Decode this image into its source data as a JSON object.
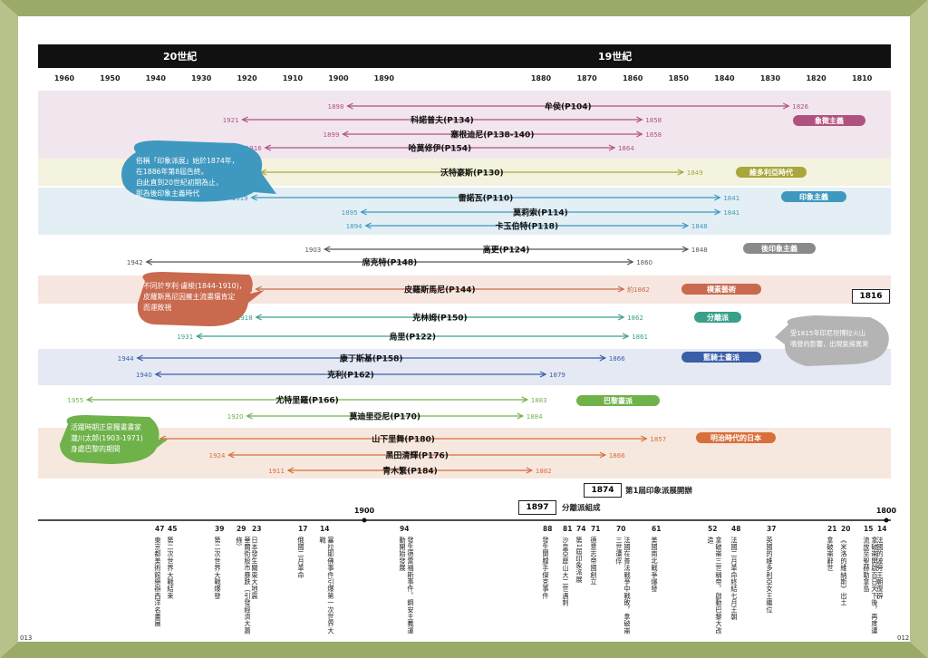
{
  "header": {
    "century_20": "20世紀",
    "century_19": "19世紀"
  },
  "years": [
    "1960",
    "1950",
    "1940",
    "1930",
    "1920",
    "1910",
    "1900",
    "1890",
    "1880",
    "1870",
    "1860",
    "1850",
    "1840",
    "1830",
    "1820",
    "1810"
  ],
  "movements": [
    {
      "name": "象徵主義",
      "color": "#b0527f"
    },
    {
      "name": "維多利亞時代",
      "color": "#a9a63b"
    },
    {
      "name": "印象主義",
      "color": "#3f98bf"
    },
    {
      "name": "後印象主義",
      "color": "#8a8a8a"
    },
    {
      "name": "樸素藝術",
      "color": "#c9694e"
    },
    {
      "name": "分離派",
      "color": "#3aa08a"
    },
    {
      "name": "藍騎士畫派",
      "color": "#3b5ea8"
    },
    {
      "name": "巴黎畫派",
      "color": "#6fb24a"
    },
    {
      "name": "明治時代的日本",
      "color": "#d86f3a"
    }
  ],
  "artists": [
    {
      "name": "牟侯(P104)",
      "death": "1898",
      "birth": "1826",
      "d": 1898,
      "b": 1826,
      "color": "#b0527f"
    },
    {
      "name": "科諾普夫(P134)",
      "death": "1921",
      "birth": "1858",
      "d": 1921,
      "b": 1858,
      "color": "#b0527f"
    },
    {
      "name": "塞根迪尼(P138-140)",
      "death": "1899",
      "birth": "1858",
      "d": 1899,
      "b": 1858,
      "color": "#b0527f"
    },
    {
      "name": "哈莫修伊(P154)",
      "death": "1916",
      "birth": "1864",
      "d": 1916,
      "b": 1864,
      "color": "#b0527f"
    },
    {
      "name": "沃特豪斯(P130)",
      "death": "1917",
      "birth": "1849",
      "d": 1917,
      "b": 1849,
      "color": "#a9a63b"
    },
    {
      "name": "雷諾瓦(P110)",
      "death": "1919",
      "birth": "1841",
      "d": 1919,
      "b": 1841,
      "color": "#3f98bf"
    },
    {
      "name": "莫莉索(P114)",
      "death": "1895",
      "birth": "1841",
      "d": 1895,
      "b": 1841,
      "color": "#3f98bf"
    },
    {
      "name": "卡玉伯特(P118)",
      "death": "1894",
      "birth": "1848",
      "d": 1894,
      "b": 1848,
      "color": "#3f98bf"
    },
    {
      "name": "高更(P124)",
      "death": "1903",
      "birth": "1848",
      "d": 1903,
      "b": 1848,
      "color": "#555555"
    },
    {
      "name": "席克特(P148)",
      "death": "1942",
      "birth": "1860",
      "d": 1942,
      "b": 1860,
      "color": "#555555"
    },
    {
      "name": "皮羅斯馬尼(P144)",
      "death": "1918",
      "birth": "約1862",
      "d": 1918,
      "b": 1862,
      "color": "#c9694e"
    },
    {
      "name": "克林姆(P150)",
      "death": "1918",
      "birth": "1862",
      "d": 1918,
      "b": 1862,
      "color": "#3aa08a"
    },
    {
      "name": "烏里(P122)",
      "death": "1931",
      "birth": "1861",
      "d": 1931,
      "b": 1861,
      "color": "#3aa08a"
    },
    {
      "name": "康丁斯基(P158)",
      "death": "1944",
      "birth": "1866",
      "d": 1944,
      "b": 1866,
      "color": "#3b5ea8"
    },
    {
      "name": "克利(P162)",
      "death": "1940",
      "birth": "1879",
      "d": 1940,
      "b": 1879,
      "color": "#3b5ea8"
    },
    {
      "name": "尤特里羅(P166)",
      "death": "1955",
      "birth": "1883",
      "d": 1955,
      "b": 1883,
      "color": "#6fb24a"
    },
    {
      "name": "莫迪里亞尼(P170)",
      "death": "1920",
      "birth": "1884",
      "d": 1920,
      "b": 1884,
      "color": "#6fb24a"
    },
    {
      "name": "山下里舞(P180)",
      "death": "1939",
      "birth": "1857",
      "d": 1939,
      "b": 1857,
      "color": "#d86f3a"
    },
    {
      "name": "黑田清輝(P176)",
      "death": "1924",
      "birth": "1866",
      "d": 1924,
      "b": 1866,
      "color": "#d86f3a"
    },
    {
      "name": "青木繁(P184)",
      "death": "1911",
      "birth": "1882",
      "d": 1911,
      "b": 1882,
      "color": "#d86f3a"
    }
  ],
  "bubbles": {
    "impressionism": [
      "俗稱「印象派展」始於1874年，",
      "在1886年第8屆告終。",
      "自此直到20世紀初期為止，",
      "即為後印象主義時代"
    ],
    "cezanne": [
      "不同於亨利·盧梭(1844-1910)，",
      "皮羅斯馬尼因擁主流畫壇肯定",
      "而運敗視"
    ],
    "kumagai": [
      "活躍時期正是獨畫畫家",
      "瀧川太郎(1903-1971)",
      "身處巴黎的期間"
    ],
    "volcano": [
      "受1815年印尼坦博拉火山",
      "噴發的影響，出現氣候異常"
    ]
  },
  "boxes": {
    "b1816": "1816",
    "b1874": "1874",
    "b1874_text": "第1屆印象派展開辦",
    "b1897": "1897",
    "b1897_text": "分離派組成"
  },
  "axis": {
    "y1900": "1900",
    "y1800": "1800"
  },
  "events": [
    {
      "num": "47",
      "text": "東京都美術館舉辦西洋名畫展"
    },
    {
      "num": "45",
      "text": "第二次世界大戰結束"
    },
    {
      "num": "39",
      "text": "第二次世界大戰爆發"
    },
    {
      "num": "29",
      "text": "華爾街股市暴跌（引發經濟大蕭條）"
    },
    {
      "num": "23",
      "text": "日本發生關東大地震"
    },
    {
      "num": "17",
      "text": "俄國二月革命"
    },
    {
      "num": "14",
      "text": "塞拉耶佛事件引爆第一次世界大戰"
    },
    {
      "num": "94",
      "text": "發生德雷福斯事件，鋼安主義運動開始發展"
    },
    {
      "num": "88",
      "text": "發生開膛手傑克事件"
    },
    {
      "num": "81",
      "text": "沙皇亞歷山大二世遇刺"
    },
    {
      "num": "74",
      "text": "第1屆印象派展"
    },
    {
      "num": "71",
      "text": "德意志帝國創立"
    },
    {
      "num": "70",
      "text": "法國在普法戰爭中戰敗，拿破崙三世遭俘"
    },
    {
      "num": "61",
      "text": "美國南北戰爭爆發"
    },
    {
      "num": "52",
      "text": "拿破崙三世稱帝，啟動巴黎大改造"
    },
    {
      "num": "48",
      "text": "法國二月革命終結七月王朝"
    },
    {
      "num": "37",
      "text": "英國的維多利亞女王繼位"
    },
    {
      "num": "21",
      "text": "拿破崙辭世"
    },
    {
      "num": "20",
      "text": "《米洛的維納斯》出土"
    },
    {
      "num": "15",
      "text": "拿破崙開啟百日天下後，再度遭流放至聖赫勒拿島"
    },
    {
      "num": "14",
      "text": "法國的波旁王朝復辟"
    }
  ],
  "pages": {
    "left": "013",
    "right": "012"
  }
}
